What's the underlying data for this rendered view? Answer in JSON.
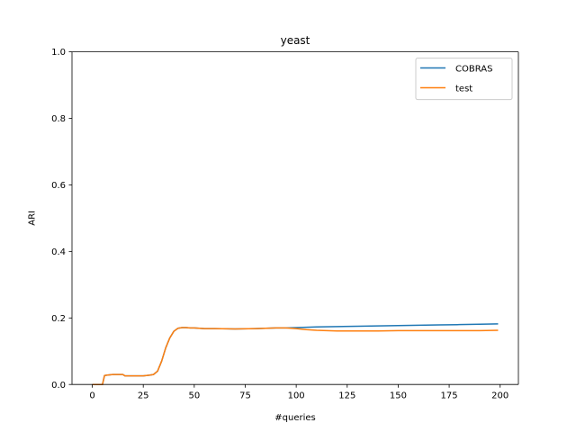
{
  "chart_data": {
    "type": "line",
    "title": "yeast",
    "xlabel": "#queries",
    "ylabel": "ARI",
    "xlim": [
      -9.95,
      208.95
    ],
    "ylim": [
      0,
      1
    ],
    "xticks": [
      "0",
      "25",
      "50",
      "75",
      "100",
      "125",
      "150",
      "175",
      "200"
    ],
    "yticks": [
      "0.0",
      "0.2",
      "0.4",
      "0.6",
      "0.8",
      "1.0"
    ],
    "grid": false,
    "legend_position": "top-right",
    "series": [
      {
        "name": "COBRAS",
        "color": "#1f77b4",
        "x": [
          0,
          5,
          6,
          7,
          10,
          15,
          16,
          20,
          25,
          28,
          30,
          32,
          34,
          36,
          38,
          40,
          42,
          44,
          46,
          48,
          50,
          55,
          60,
          70,
          80,
          90,
          95,
          100,
          110,
          120,
          130,
          140,
          150,
          160,
          170,
          180,
          190,
          199
        ],
        "y": [
          0.0,
          0.0,
          0.027,
          0.028,
          0.03,
          0.03,
          0.026,
          0.026,
          0.026,
          0.028,
          0.03,
          0.04,
          0.07,
          0.11,
          0.14,
          0.16,
          0.169,
          0.171,
          0.171,
          0.17,
          0.17,
          0.168,
          0.168,
          0.167,
          0.168,
          0.17,
          0.17,
          0.171,
          0.173,
          0.174,
          0.175,
          0.176,
          0.177,
          0.178,
          0.179,
          0.18,
          0.181,
          0.182
        ]
      },
      {
        "name": "test",
        "color": "#ff7f0e",
        "x": [
          0,
          5,
          6,
          7,
          10,
          15,
          16,
          20,
          25,
          28,
          30,
          32,
          34,
          36,
          38,
          40,
          42,
          44,
          46,
          48,
          50,
          55,
          60,
          70,
          80,
          90,
          95,
          100,
          105,
          110,
          120,
          130,
          140,
          150,
          160,
          170,
          180,
          190,
          199
        ],
        "y": [
          0.0,
          0.0,
          0.027,
          0.028,
          0.03,
          0.03,
          0.026,
          0.026,
          0.026,
          0.028,
          0.03,
          0.04,
          0.07,
          0.11,
          0.14,
          0.16,
          0.169,
          0.171,
          0.171,
          0.17,
          0.17,
          0.168,
          0.168,
          0.167,
          0.168,
          0.17,
          0.17,
          0.168,
          0.165,
          0.163,
          0.161,
          0.161,
          0.161,
          0.162,
          0.162,
          0.162,
          0.162,
          0.162,
          0.163
        ]
      }
    ]
  }
}
